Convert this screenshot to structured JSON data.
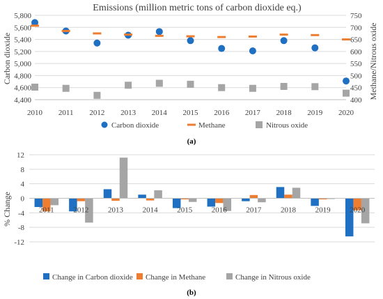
{
  "colors": {
    "co2": "#1f6fc2",
    "ch4": "#ed7d31",
    "n2o": "#a5a5a5",
    "grid": "#d9d9d9",
    "axis": "#bfbfbf",
    "text": "#404040"
  },
  "chart_data": [
    {
      "type": "scatter",
      "title": "Emissions (million metric tons of carbon dioxide eq.)",
      "xlabel": "",
      "ylabel": "Carbon dioxide",
      "ylabel_right": "Methane/Nitrous oxide",
      "x": [
        "2010",
        "2011",
        "2012",
        "2013",
        "2014",
        "2015",
        "2016",
        "2017",
        "2018",
        "2019",
        "2020"
      ],
      "ylim": [
        4400,
        5800
      ],
      "yticks": [
        "4,400",
        "4,600",
        "4,800",
        "5,000",
        "5,200",
        "5,400",
        "5,600",
        "5,800"
      ],
      "ylim_right": [
        400,
        750
      ],
      "yticks_right": [
        "400",
        "450",
        "500",
        "550",
        "600",
        "650",
        "700",
        "750"
      ],
      "grid": true,
      "legend": "bottom",
      "panel_label": "(a)",
      "series": [
        {
          "name": "Carbon dioxide",
          "axis": "left",
          "marker": "circle",
          "values": [
            5680,
            5540,
            5340,
            5470,
            5530,
            5380,
            5250,
            5210,
            5380,
            5260,
            4710
          ]
        },
        {
          "name": "Methane",
          "axis": "right",
          "marker": "dash",
          "values": [
            707,
            685,
            675,
            670,
            665,
            663,
            660,
            662,
            670,
            668,
            650
          ]
        },
        {
          "name": "Nitrous oxide",
          "axis": "right",
          "marker": "square",
          "values": [
            452,
            447,
            418,
            460,
            468,
            464,
            450,
            447,
            455,
            454,
            427
          ]
        }
      ]
    },
    {
      "type": "bar",
      "title": "",
      "xlabel": "",
      "ylabel": "% Change",
      "categories": [
        "2011",
        "2012",
        "2013",
        "2014",
        "2015",
        "2016",
        "2017",
        "2018",
        "2019",
        "2020"
      ],
      "ylim": [
        -12,
        12
      ],
      "yticks": [
        "-12",
        "-8",
        "-4",
        "0",
        "4",
        "8",
        "12"
      ],
      "grid": true,
      "legend": "bottom",
      "panel_label": "(b)",
      "series": [
        {
          "name": "Change in Carbon dioxide",
          "values": [
            -2.4,
            -3.6,
            2.5,
            1.0,
            -2.7,
            -2.3,
            -0.8,
            3.1,
            -2.1,
            -10.5
          ]
        },
        {
          "name": "Change in Methane",
          "values": [
            -3.6,
            -0.8,
            -0.7,
            -0.6,
            -0.3,
            -1.3,
            0.9,
            1.0,
            -0.3,
            -3.3
          ]
        },
        {
          "name": "Change in Nitrous oxide",
          "values": [
            -1.9,
            -6.7,
            11.2,
            2.2,
            -1.0,
            -3.5,
            -1.1,
            2.9,
            -0.2,
            -6.9
          ]
        }
      ]
    }
  ]
}
